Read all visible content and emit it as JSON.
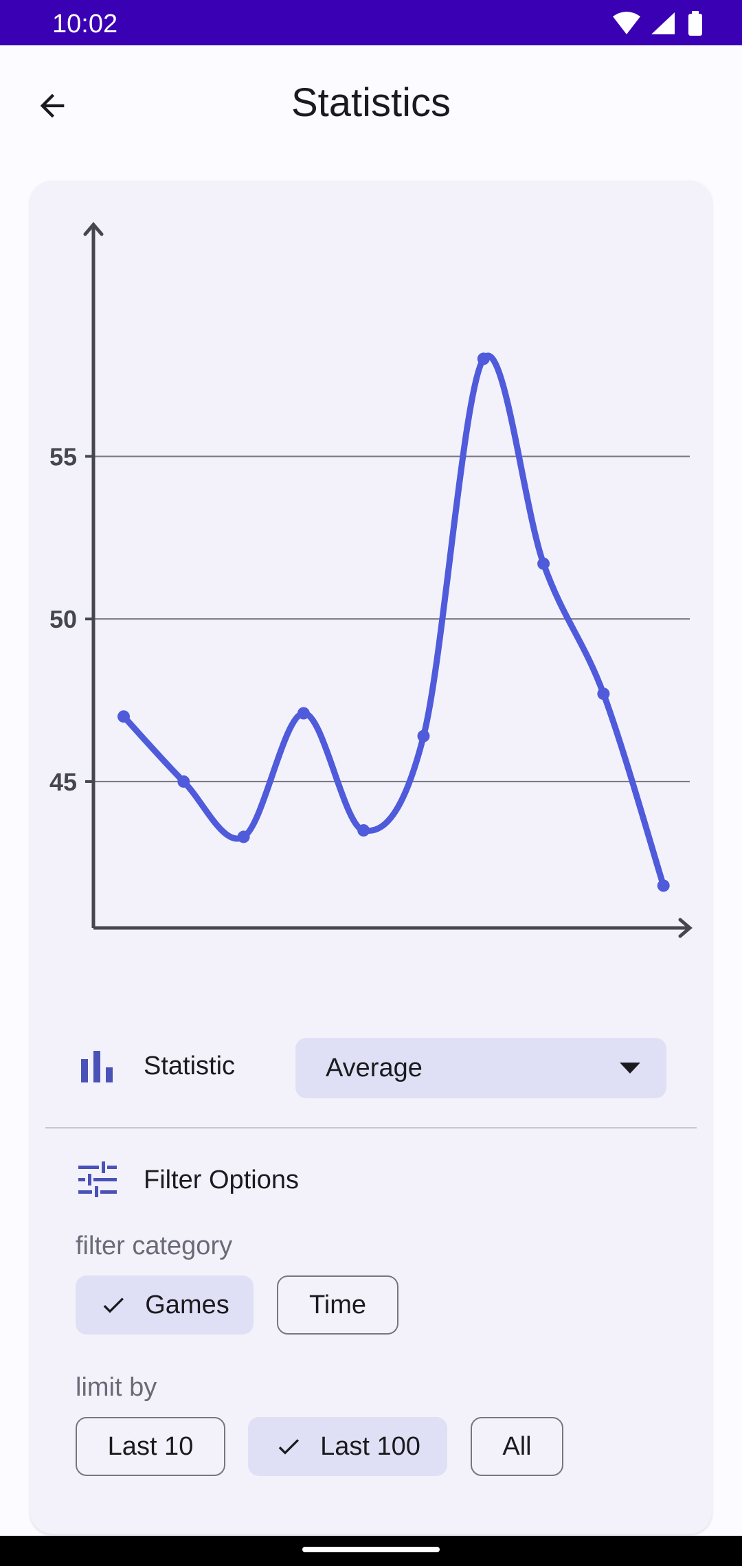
{
  "status_bar": {
    "time": "10:02",
    "icons": [
      "wifi-icon",
      "signal-icon",
      "battery-icon"
    ]
  },
  "app_bar": {
    "title": "Statistics",
    "back_icon": "arrow-back-icon"
  },
  "chart_data": {
    "type": "line",
    "x": [
      1,
      2,
      3,
      4,
      5,
      6,
      7,
      8,
      9,
      10
    ],
    "series": [
      {
        "values": [
          47.0,
          45.0,
          43.3,
          47.1,
          43.5,
          46.4,
          58.0,
          51.7,
          47.7,
          41.8
        ]
      }
    ],
    "y_ticks": [
      "45",
      "50",
      "55"
    ],
    "ylim": [
      40.5,
      62.0
    ],
    "grid": true,
    "smoothed_line": true,
    "color": "#4f5bdb"
  },
  "statistic": {
    "icon": "bar-chart-icon",
    "label": "Statistic",
    "selected": "Average",
    "arrow_icon": "dropdown-arrow-icon"
  },
  "filter": {
    "icon": "tune-icon",
    "label": "Filter Options",
    "category_label": "filter category",
    "category_chips": [
      {
        "label": "Games",
        "selected": true
      },
      {
        "label": "Time",
        "selected": false
      }
    ],
    "limit_label": "limit by",
    "limit_chips": [
      {
        "label": "Last 10",
        "selected": false
      },
      {
        "label": "Last 100",
        "selected": true
      },
      {
        "label": "All",
        "selected": false
      }
    ]
  },
  "colors": {
    "status_bar": "#3a00b4",
    "accent": "#4f5bdb",
    "chip_selected": "#dfe0f5",
    "card": "#f3f2fa"
  }
}
